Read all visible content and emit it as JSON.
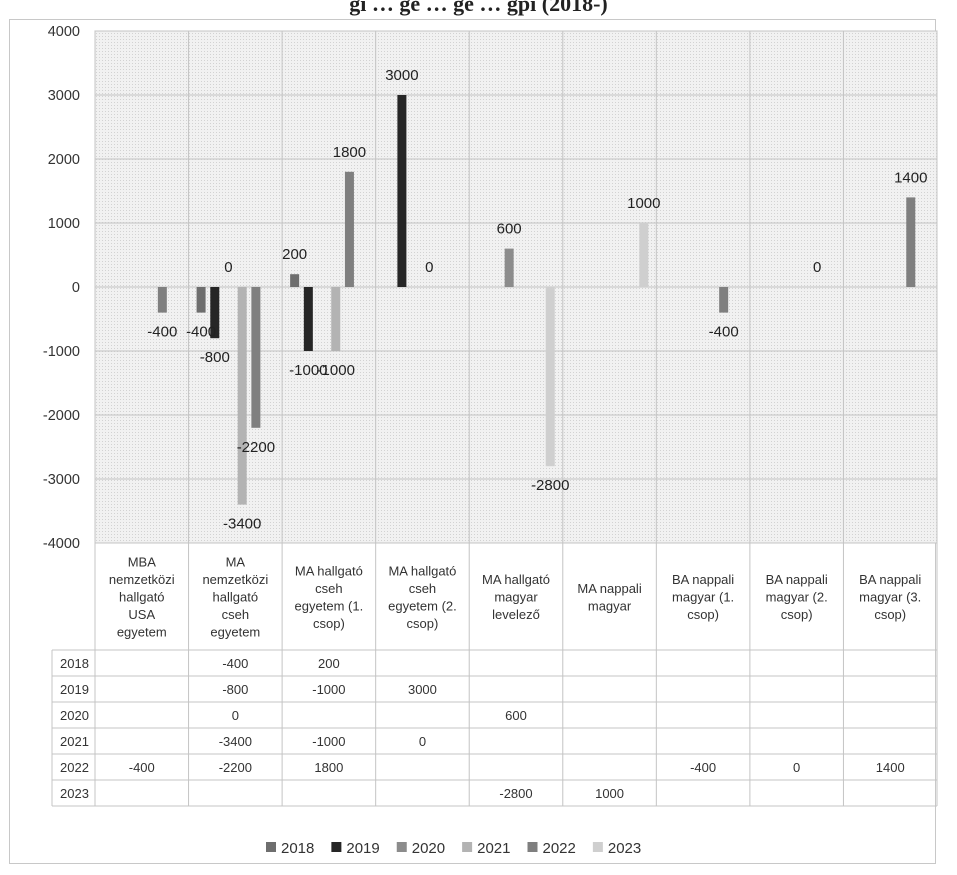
{
  "title": "gi … ge … ge … gpi (2018-)",
  "chart_data": {
    "type": "bar",
    "ylim": [
      -4000,
      4000
    ],
    "yticks": [
      4000,
      3000,
      2000,
      1000,
      0,
      -1000,
      -2000,
      -3000,
      -4000
    ],
    "grid": false,
    "legend_position": "bottom",
    "categories": [
      [
        "MBA",
        "nemzetközi",
        "hallgató",
        "USA",
        "egyetem"
      ],
      [
        "MA",
        "nemzetközi",
        "hallgató",
        "cseh",
        "egyetem"
      ],
      [
        "MA hallgató",
        "cseh",
        "egyetem (1.",
        "csop)"
      ],
      [
        "MA hallgató",
        "cseh",
        "egyetem (2.",
        "csop)"
      ],
      [
        "MA hallgató",
        "magyar",
        "levelező"
      ],
      [
        "MA nappali",
        "magyar"
      ],
      [
        "BA nappali",
        "magyar (1.",
        "csop)"
      ],
      [
        "BA nappali",
        "magyar (2.",
        "csop)"
      ],
      [
        "BA nappali",
        "magyar (3.",
        "csop)"
      ]
    ],
    "series": [
      {
        "name": "2018",
        "color": "#6e6e6e",
        "values": [
          null,
          -400,
          200,
          null,
          null,
          null,
          null,
          null,
          null
        ]
      },
      {
        "name": "2019",
        "color": "#262626",
        "values": [
          null,
          -800,
          -1000,
          3000,
          null,
          null,
          null,
          null,
          null
        ]
      },
      {
        "name": "2020",
        "color": "#8c8c8c",
        "values": [
          null,
          0,
          null,
          null,
          600,
          null,
          null,
          null,
          null
        ]
      },
      {
        "name": "2021",
        "color": "#b3b3b3",
        "values": [
          null,
          -3400,
          -1000,
          0,
          null,
          null,
          null,
          null,
          null
        ]
      },
      {
        "name": "2022",
        "color": "#7f7f7f",
        "values": [
          -400,
          -2200,
          1800,
          null,
          null,
          null,
          -400,
          0,
          1400
        ]
      },
      {
        "name": "2023",
        "color": "#cfcfcf",
        "values": [
          null,
          null,
          null,
          null,
          -2800,
          1000,
          null,
          null,
          null
        ]
      }
    ]
  }
}
